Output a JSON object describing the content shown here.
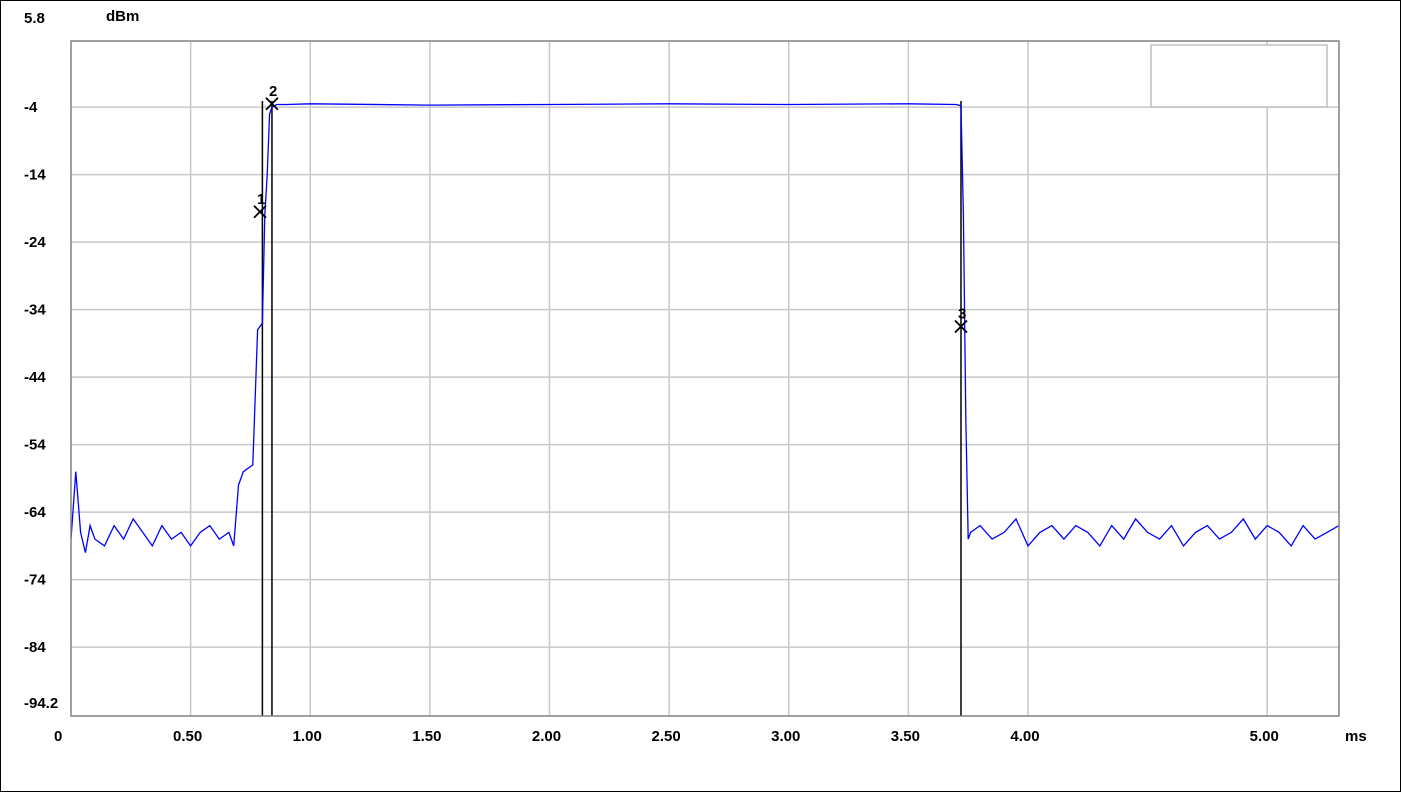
{
  "chart_data": {
    "type": "line",
    "title": "",
    "xlabel": "ms",
    "ylabel": "dBm",
    "xlim": [
      0,
      5.3
    ],
    "ylim": [
      -94.2,
      5.8
    ],
    "x_ticks": [
      {
        "value": 0,
        "label": "0"
      },
      {
        "value": 0.5,
        "label": "0.50"
      },
      {
        "value": 1.0,
        "label": "1.00"
      },
      {
        "value": 1.5,
        "label": "1.50"
      },
      {
        "value": 2.0,
        "label": "2.00"
      },
      {
        "value": 2.5,
        "label": "2.50"
      },
      {
        "value": 3.0,
        "label": "3.00"
      },
      {
        "value": 3.5,
        "label": "3.50"
      },
      {
        "value": 4.0,
        "label": "4.00"
      },
      {
        "value": 5.0,
        "label": "5.00"
      }
    ],
    "y_ticks": [
      {
        "value": 5.8,
        "label": "5.8"
      },
      {
        "value": -4,
        "label": "-4"
      },
      {
        "value": -14,
        "label": "-14"
      },
      {
        "value": -24,
        "label": "-24"
      },
      {
        "value": -34,
        "label": "-34"
      },
      {
        "value": -44,
        "label": "-44"
      },
      {
        "value": -54,
        "label": "-54"
      },
      {
        "value": -64,
        "label": "-64"
      },
      {
        "value": -74,
        "label": "-74"
      },
      {
        "value": -84,
        "label": "-84"
      },
      {
        "value": -94.2,
        "label": "-94.2"
      }
    ],
    "grid": true,
    "series": [
      {
        "color": "#0000ff",
        "x": [
          0.0,
          0.02,
          0.04,
          0.06,
          0.08,
          0.1,
          0.14,
          0.18,
          0.22,
          0.26,
          0.3,
          0.34,
          0.38,
          0.42,
          0.46,
          0.5,
          0.54,
          0.58,
          0.62,
          0.66,
          0.68,
          0.7,
          0.72,
          0.76,
          0.78,
          0.8,
          0.81,
          0.82,
          0.83,
          0.84,
          0.86,
          0.9,
          1.0,
          1.5,
          2.0,
          2.5,
          3.0,
          3.5,
          3.7,
          3.72,
          3.73,
          3.74,
          3.75,
          3.76,
          3.8,
          3.85,
          3.9,
          3.95,
          4.0,
          4.05,
          4.1,
          4.15,
          4.2,
          4.25,
          4.3,
          4.35,
          4.4,
          4.45,
          4.5,
          4.55,
          4.6,
          4.65,
          4.7,
          4.75,
          4.8,
          4.85,
          4.9,
          4.95,
          5.0,
          5.05,
          5.1,
          5.15,
          5.2,
          5.25,
          5.3
        ],
        "y": [
          -68,
          -58,
          -67,
          -70,
          -66,
          -68,
          -69,
          -66,
          -68,
          -65,
          -67,
          -69,
          -66,
          -68,
          -67,
          -69,
          -67,
          -66,
          -68,
          -67,
          -69,
          -60,
          -58,
          -57,
          -37,
          -36,
          -20,
          -14,
          -5,
          -4,
          -3.6,
          -3.6,
          -3.5,
          -3.7,
          -3.6,
          -3.5,
          -3.6,
          -3.5,
          -3.6,
          -3.8,
          -20,
          -50,
          -68,
          -67,
          -66,
          -68,
          -67,
          -65,
          -69,
          -67,
          -66,
          -68,
          -66,
          -67,
          -69,
          -66,
          -68,
          -65,
          -67,
          -68,
          -66,
          -69,
          -67,
          -66,
          -68,
          -67,
          -65,
          -68,
          -66,
          -67,
          -69,
          -66,
          -68,
          -67,
          -66
        ]
      }
    ],
    "markers": [
      {
        "label": "1",
        "x": 0.79,
        "y": -19.5
      },
      {
        "label": "2",
        "x": 0.84,
        "y": -3.5
      },
      {
        "label": "3",
        "x": 3.72,
        "y": -36.5
      }
    ],
    "vertical_lines": [
      0.8,
      0.84,
      3.72
    ],
    "legend": "top-right"
  }
}
